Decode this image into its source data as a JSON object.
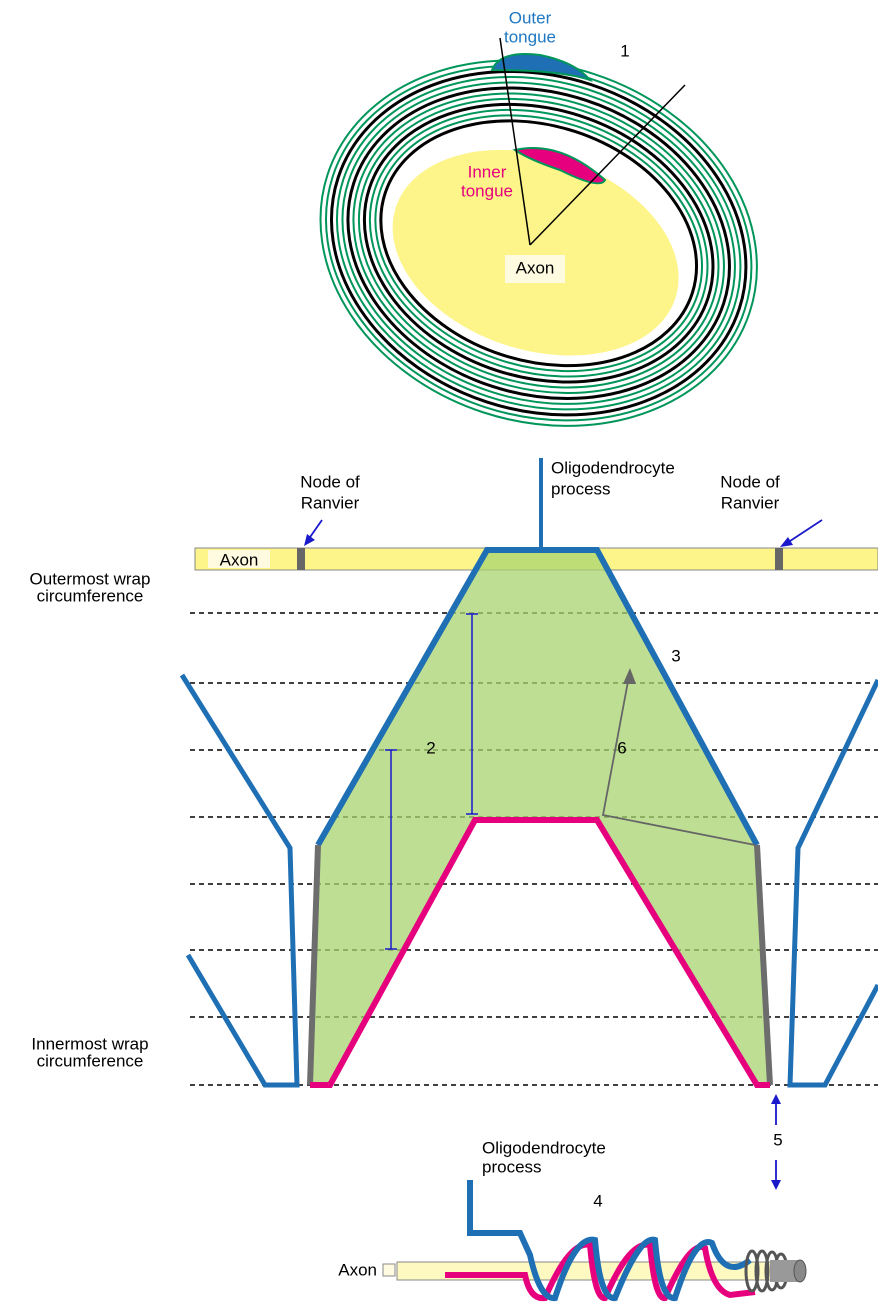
{
  "cross_section": {
    "outer_tongue": [
      "Outer",
      "tongue"
    ],
    "marker": "1",
    "inner_tongue": [
      "Inner",
      "tongue"
    ],
    "axon": "Axon"
  },
  "longitudinal": {
    "node_left": [
      "Node of",
      "Ranvier"
    ],
    "node_right": [
      "Node of",
      "Ranvier"
    ],
    "process": [
      "Oligodendrocyte",
      "process"
    ],
    "axon": "Axon",
    "outermost": [
      "Outermost wrap",
      "circumference"
    ],
    "innermost": [
      "Innermost wrap",
      "circumference"
    ],
    "markers": [
      "3",
      "2",
      "6",
      "5"
    ]
  },
  "spiral": {
    "process": [
      "Oligodendrocyte",
      "process"
    ],
    "marker": "4",
    "axon": "Axon"
  }
}
